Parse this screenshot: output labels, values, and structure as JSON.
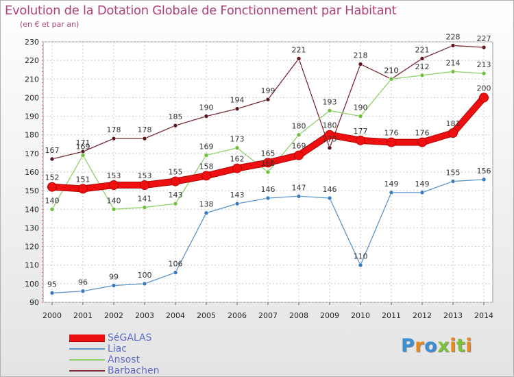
{
  "header": {
    "title": "Evolution de la Dotation Globale de Fonctionnement par Habitant",
    "subtitle": "(en € et par an)"
  },
  "brand": {
    "letters": [
      "P",
      "r",
      "o",
      "x",
      "i",
      "t",
      "i"
    ],
    "colors": [
      "#3a8fd6",
      "#e8881c",
      "#3a8fd6",
      "#7cc23a",
      "#e8881c",
      "#7cc23a",
      "#e8881c"
    ]
  },
  "chart_data": {
    "type": "line",
    "title": "Evolution de la Dotation Globale de Fonctionnement par Habitant",
    "subtitle": "(en € et par an)",
    "xlabel": "",
    "ylabel": "",
    "x": [
      "2000",
      "2001",
      "2002",
      "2003",
      "2004",
      "2005",
      "2006",
      "2007",
      "2008",
      "2009",
      "2010",
      "2011",
      "2012",
      "2013",
      "2014"
    ],
    "ylim": [
      90,
      230
    ],
    "yticks": [
      90,
      100,
      110,
      120,
      130,
      140,
      150,
      160,
      170,
      180,
      190,
      200,
      210,
      220,
      230
    ],
    "grid": true,
    "legend_position": "bottom-left",
    "series": [
      {
        "name": "Barbachen",
        "color": "#7a2a34",
        "marker": "#5e1620",
        "values": [
          167,
          171,
          178,
          178,
          185,
          190,
          194,
          199,
          221,
          173,
          218,
          210,
          221,
          228,
          227
        ],
        "labels": [
          "167",
          "171",
          "178",
          "178",
          "185",
          "190",
          "194",
          "199",
          "221",
          "173",
          "218",
          "210",
          "221",
          "228",
          "227"
        ]
      },
      {
        "name": "Ansost",
        "color": "#8fd06a",
        "marker": "#6ec03a",
        "values": [
          140,
          169,
          140,
          141,
          143,
          169,
          173,
          160,
          180,
          193,
          190,
          210,
          212,
          214,
          213
        ],
        "labels": [
          "140",
          "169",
          "140",
          "141",
          "143",
          "169",
          "173",
          "160",
          "180",
          "193",
          "190",
          "210",
          "212",
          "214",
          "213"
        ]
      },
      {
        "name": "Liac",
        "color": "#5a94c8",
        "marker": "#3a7ac0",
        "values": [
          95,
          96,
          99,
          100,
          106,
          138,
          143,
          146,
          147,
          146,
          110,
          149,
          149,
          155,
          156
        ],
        "labels": [
          "95",
          "96",
          "99",
          "100",
          "106",
          "138",
          "143",
          "146",
          "147",
          "146",
          "110",
          "149",
          "149",
          "155",
          "156"
        ]
      },
      {
        "name": "SéGALAS",
        "color": "#ee1010",
        "marker": "#ee1010",
        "values": [
          152,
          151,
          153,
          153,
          155,
          158,
          162,
          165,
          169,
          180,
          177,
          176,
          176,
          181,
          200
        ],
        "labels": [
          "152",
          "151",
          "153",
          "153",
          "155",
          "158",
          "162",
          "165",
          "169",
          "180",
          "177",
          "176",
          "176",
          "181",
          "200"
        ]
      }
    ],
    "legend": [
      "SéGALAS",
      "Liac",
      "Ansost",
      "Barbachen"
    ]
  }
}
